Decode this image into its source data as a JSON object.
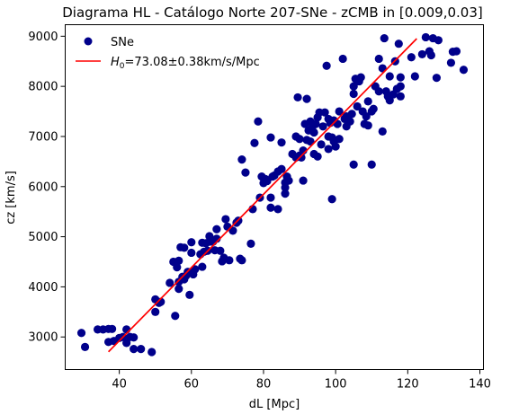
{
  "chart_data": {
    "type": "scatter",
    "title": "Diagrama HL - Catálogo Norte 207-SNe - zCMB in [0.009,0.03]",
    "xlabel": "dL [Mpc]",
    "ylabel": "cz [km/s]",
    "xlim": [
      25,
      141
    ],
    "ylim": [
      2350,
      9230
    ],
    "xticks": [
      "40",
      "60",
      "80",
      "100",
      "120",
      "140"
    ],
    "yticks": [
      "3000",
      "4000",
      "5000",
      "6000",
      "7000",
      "8000",
      "9000"
    ],
    "legend": {
      "position": "upper-left",
      "entries": [
        {
          "label": "SNe",
          "color": "#00008b",
          "marker": "circle"
        },
        {
          "label_main": "H",
          "label_sub": "0",
          "label_rest": "=73.08±0.38km/s/Mpc",
          "color": "#ff0000",
          "marker": "line"
        }
      ]
    },
    "grid": false,
    "series": [
      {
        "name": "SNe",
        "kind": "scatter",
        "color": "#00008b",
        "points": [
          [
            29.5,
            3080
          ],
          [
            30.5,
            2800
          ],
          [
            34,
            3150
          ],
          [
            35.5,
            3150
          ],
          [
            37,
            3160
          ],
          [
            38,
            3160
          ],
          [
            37,
            2900
          ],
          [
            38.5,
            2920
          ],
          [
            40,
            2980
          ],
          [
            41,
            3000
          ],
          [
            42,
            2880
          ],
          [
            42,
            3150
          ],
          [
            43,
            3000
          ],
          [
            44,
            2990
          ],
          [
            44,
            2760
          ],
          [
            46,
            2760
          ],
          [
            49,
            2700
          ],
          [
            50,
            3500
          ],
          [
            50,
            3750
          ],
          [
            51,
            3680
          ],
          [
            51.5,
            3700
          ],
          [
            54,
            4080
          ],
          [
            55,
            4500
          ],
          [
            55.5,
            3420
          ],
          [
            56,
            4390
          ],
          [
            56.5,
            4520
          ],
          [
            56.5,
            4100
          ],
          [
            56.5,
            3960
          ],
          [
            57,
            4790
          ],
          [
            57.5,
            4200
          ],
          [
            58,
            4780
          ],
          [
            58,
            4150
          ],
          [
            58.5,
            4220
          ],
          [
            59,
            4300
          ],
          [
            59.5,
            3840
          ],
          [
            60,
            4680
          ],
          [
            60,
            4890
          ],
          [
            60.5,
            4250
          ],
          [
            61,
            4350
          ],
          [
            62.5,
            4650
          ],
          [
            63,
            4880
          ],
          [
            63,
            4400
          ],
          [
            63.5,
            4700
          ],
          [
            64,
            4870
          ],
          [
            64.5,
            4720
          ],
          [
            65,
            4900
          ],
          [
            65,
            5010
          ],
          [
            66,
            4900
          ],
          [
            66.5,
            4730
          ],
          [
            67,
            4960
          ],
          [
            67,
            5150
          ],
          [
            68,
            4720
          ],
          [
            68.5,
            4510
          ],
          [
            69,
            4580
          ],
          [
            69.5,
            5350
          ],
          [
            70,
            5200
          ],
          [
            70.5,
            4530
          ],
          [
            71.5,
            5120
          ],
          [
            72.5,
            5280
          ],
          [
            73,
            5320
          ],
          [
            73.5,
            4560
          ],
          [
            74,
            4530
          ],
          [
            74,
            6540
          ],
          [
            75,
            6280
          ],
          [
            76.5,
            4860
          ],
          [
            77,
            5550
          ],
          [
            77.5,
            6870
          ],
          [
            78.5,
            7300
          ],
          [
            79,
            5780
          ],
          [
            79.5,
            6200
          ],
          [
            80,
            6070
          ],
          [
            80.5,
            6150
          ],
          [
            81,
            6110
          ],
          [
            82,
            5580
          ],
          [
            82,
            5780
          ],
          [
            82,
            6980
          ],
          [
            82.5,
            6200
          ],
          [
            83,
            6220
          ],
          [
            84,
            6300
          ],
          [
            84,
            5550
          ],
          [
            85,
            6350
          ],
          [
            85,
            6880
          ],
          [
            86,
            6080
          ],
          [
            86,
            5980
          ],
          [
            86,
            5860
          ],
          [
            86.5,
            6200
          ],
          [
            87,
            6120
          ],
          [
            88,
            6650
          ],
          [
            89,
            6580
          ],
          [
            89,
            7000
          ],
          [
            89.5,
            7780
          ],
          [
            90,
            6950
          ],
          [
            90,
            6620
          ],
          [
            90.5,
            6580
          ],
          [
            91,
            6720
          ],
          [
            91,
            6120
          ],
          [
            91.5,
            7250
          ],
          [
            92,
            6930
          ],
          [
            92,
            7750
          ],
          [
            92.5,
            7120
          ],
          [
            93,
            6900
          ],
          [
            93,
            7300
          ],
          [
            93.5,
            7180
          ],
          [
            94,
            6650
          ],
          [
            94,
            7080
          ],
          [
            94.5,
            7250
          ],
          [
            95,
            7380
          ],
          [
            95,
            6600
          ],
          [
            95.5,
            7480
          ],
          [
            96,
            6840
          ],
          [
            96.5,
            7200
          ],
          [
            97,
            7480
          ],
          [
            97.5,
            8410
          ],
          [
            98,
            7350
          ],
          [
            98,
            7000
          ],
          [
            98,
            6750
          ],
          [
            98.5,
            7270
          ],
          [
            99,
            6980
          ],
          [
            99,
            5750
          ],
          [
            99.5,
            6900
          ],
          [
            99.5,
            7320
          ],
          [
            100,
            6800
          ],
          [
            100.5,
            7250
          ],
          [
            101,
            7500
          ],
          [
            101,
            6950
          ],
          [
            102,
            8550
          ],
          [
            102.5,
            7350
          ],
          [
            103,
            7400
          ],
          [
            103,
            7200
          ],
          [
            104,
            7300
          ],
          [
            104.5,
            7450
          ],
          [
            105,
            7850
          ],
          [
            105,
            8000
          ],
          [
            105,
            6440
          ],
          [
            105.5,
            8150
          ],
          [
            106,
            7600
          ],
          [
            106.5,
            8100
          ],
          [
            107,
            8180
          ],
          [
            107.5,
            7500
          ],
          [
            108,
            7250
          ],
          [
            108.5,
            7400
          ],
          [
            109,
            7700
          ],
          [
            109,
            7220
          ],
          [
            110,
            7500
          ],
          [
            110,
            6440
          ],
          [
            110.5,
            7550
          ],
          [
            111,
            8000
          ],
          [
            112,
            8550
          ],
          [
            112,
            7900
          ],
          [
            113,
            8360
          ],
          [
            113,
            7100
          ],
          [
            113.5,
            8960
          ],
          [
            114,
            7900
          ],
          [
            114.5,
            7800
          ],
          [
            115,
            8200
          ],
          [
            115,
            7720
          ],
          [
            116,
            7840
          ],
          [
            116.5,
            8500
          ],
          [
            117,
            7950
          ],
          [
            117.5,
            8850
          ],
          [
            118,
            7800
          ],
          [
            118,
            8000
          ],
          [
            118,
            8180
          ],
          [
            121,
            8580
          ],
          [
            122,
            8200
          ],
          [
            124,
            8640
          ],
          [
            125,
            8980
          ],
          [
            126,
            8700
          ],
          [
            126.5,
            8620
          ],
          [
            127,
            8960
          ],
          [
            128,
            8170
          ],
          [
            128.5,
            8920
          ],
          [
            132,
            8470
          ],
          [
            132.5,
            8690
          ],
          [
            133.5,
            8700
          ],
          [
            135.5,
            8330
          ]
        ]
      },
      {
        "name_main": "H",
        "name_sub": "0",
        "name_rest": "=73.08±0.38km/s/Mpc",
        "kind": "line",
        "color": "#ff0000",
        "points": [
          [
            37,
            2704
          ],
          [
            122.5,
            8952
          ]
        ]
      }
    ]
  }
}
